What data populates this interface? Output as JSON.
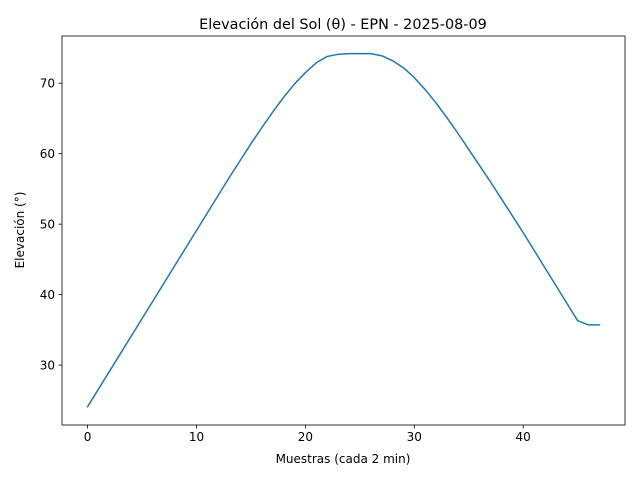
{
  "chart_data": {
    "type": "line",
    "title": "Elevación del Sol (θ) - EPN - 2025-08-09",
    "xlabel": "Muestras (cada 2 min)",
    "ylabel": "Elevación (°)",
    "xlim": [
      -2.35,
      49.35
    ],
    "ylim": [
      21.5,
      76.7
    ],
    "xticks": [
      0,
      10,
      20,
      30,
      40
    ],
    "yticks": [
      30,
      40,
      50,
      60,
      70
    ],
    "grid": false,
    "line_color": "#1f77b4",
    "series": [
      {
        "x": [
          0,
          1,
          2,
          3,
          4,
          5,
          6,
          7,
          8,
          9,
          10,
          11,
          12,
          13,
          14,
          15,
          16,
          17,
          18,
          19,
          20,
          21,
          22,
          23,
          24,
          25,
          26,
          27,
          28,
          29,
          30,
          31,
          32,
          33,
          34,
          35,
          36,
          37,
          38,
          39,
          40,
          41,
          42,
          43,
          44,
          45,
          46,
          47
        ],
        "values": [
          24.1,
          26.6,
          29.1,
          31.6,
          34.1,
          36.6,
          39.1,
          41.6,
          44.1,
          46.6,
          49.1,
          51.6,
          54.1,
          56.6,
          59.0,
          61.4,
          63.7,
          65.9,
          68.0,
          69.9,
          71.5,
          72.9,
          73.8,
          74.1,
          74.2,
          74.2,
          74.2,
          73.9,
          73.2,
          72.2,
          70.8,
          69.1,
          67.2,
          65.1,
          62.9,
          60.6,
          58.3,
          56.0,
          53.6,
          51.2,
          48.8,
          46.3,
          43.8,
          41.3,
          38.8,
          36.3,
          35.7,
          35.7
        ]
      }
    ]
  }
}
